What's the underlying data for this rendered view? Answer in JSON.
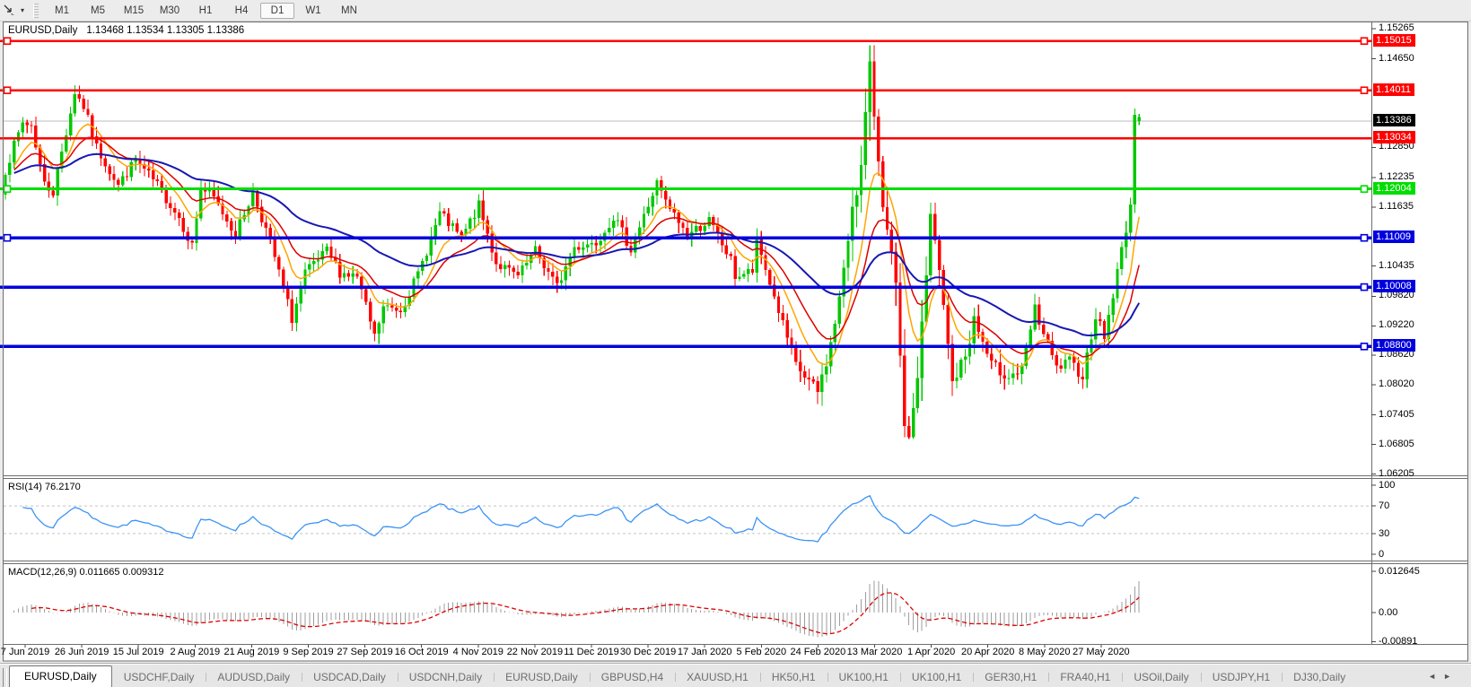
{
  "toolbar": {
    "chart_tool_icon": "diagonal-cursor-icon",
    "dropdown_caret": "▾",
    "timeframes": [
      {
        "label": "M1",
        "active": false
      },
      {
        "label": "M5",
        "active": false
      },
      {
        "label": "M15",
        "active": false
      },
      {
        "label": "M30",
        "active": false
      },
      {
        "label": "H1",
        "active": false
      },
      {
        "label": "H4",
        "active": false
      },
      {
        "label": "D1",
        "active": true
      },
      {
        "label": "W1",
        "active": false
      },
      {
        "label": "MN",
        "active": false
      }
    ]
  },
  "chart_header": {
    "symbol_label": "EURUSD,Daily",
    "quote_line": "1.13468 1.13534 1.13305 1.13386"
  },
  "colors": {
    "bull": "#00C800",
    "bear": "#FF0000",
    "ma_fast": "#FFA500",
    "ma_mid": "#DE0000",
    "ma_slow": "#1717B4",
    "hline_red": "#FF0000",
    "hline_green": "#00DD00",
    "hline_blue": "#0000DE",
    "current_line": "#BEBEBE",
    "current_label_bg": "#000000",
    "rsi_line": "#3B93F5",
    "macd_hist": "#9E9E9E",
    "macd_signal": "#DE0000",
    "panel_border": "#6E6E6E"
  },
  "chart_data": {
    "type": "candlestick",
    "symbol": "EURUSD",
    "timeframe": "Daily",
    "last_quote": {
      "open": "1.13468",
      "high": "1.13534",
      "low": "1.13305",
      "close": "1.13386",
      "bullish_render": true
    },
    "y_axis": {
      "top_price": 1.15265,
      "bottom_price": 1.06205,
      "ticks": [
        "1.15265",
        "1.14650",
        "1.12850",
        "1.12235",
        "1.11635",
        "1.10435",
        "1.09820",
        "1.09220",
        "1.08620",
        "1.08020",
        "1.07405",
        "1.06805",
        "1.06205"
      ]
    },
    "x_labels": [
      "7 Jun 2019",
      "26 Jun 2019",
      "15 Jul 2019",
      "2 Aug 2019",
      "21 Aug 2019",
      "9 Sep 2019",
      "27 Sep 2019",
      "16 Oct 2019",
      "4 Nov 2019",
      "22 Nov 2019",
      "11 Dec 2019",
      "30 Dec 2019",
      "17 Jan 2020",
      "5 Feb 2020",
      "24 Feb 2020",
      "13 Mar 2020",
      "1 Apr 2020",
      "20 Apr 2020",
      "8 May 2020",
      "27 May 2020"
    ],
    "candle_count": 262,
    "close_anchors": [
      [
        0,
        1.124,
        1
      ],
      [
        4,
        1.1335,
        1
      ],
      [
        6,
        1.133,
        1
      ],
      [
        9,
        1.121,
        1
      ],
      [
        11,
        1.1195,
        1
      ],
      [
        16,
        1.1398,
        1.1
      ],
      [
        18,
        1.1368,
        1
      ],
      [
        21,
        1.1285,
        1
      ],
      [
        26,
        1.1208,
        1
      ],
      [
        30,
        1.1259,
        1
      ],
      [
        35,
        1.1207,
        1
      ],
      [
        40,
        1.1143,
        1
      ],
      [
        43,
        1.1085,
        1
      ],
      [
        45,
        1.1203,
        1.2
      ],
      [
        48,
        1.1181,
        1
      ],
      [
        53,
        1.1109,
        1
      ],
      [
        57,
        1.1193,
        1
      ],
      [
        61,
        1.1092,
        1
      ],
      [
        66,
        1.0936,
        1
      ],
      [
        69,
        1.1028,
        1
      ],
      [
        74,
        1.1073,
        1
      ],
      [
        77,
        1.1031,
        1
      ],
      [
        81,
        1.1021,
        1
      ],
      [
        85,
        1.0899,
        1
      ],
      [
        87,
        1.0959,
        1
      ],
      [
        91,
        1.0956,
        1
      ],
      [
        95,
        1.1026,
        1
      ],
      [
        100,
        1.115,
        1
      ],
      [
        105,
        1.11,
        1
      ],
      [
        109,
        1.1166,
        1
      ],
      [
        113,
        1.105,
        1
      ],
      [
        118,
        1.1021,
        1
      ],
      [
        122,
        1.1074,
        1
      ],
      [
        127,
        1.1001,
        1
      ],
      [
        131,
        1.1082,
        1
      ],
      [
        136,
        1.1093,
        1
      ],
      [
        140,
        1.1145,
        1
      ],
      [
        144,
        1.1078,
        1
      ],
      [
        150,
        1.1212,
        1
      ],
      [
        152,
        1.1172,
        1
      ],
      [
        157,
        1.1107,
        1
      ],
      [
        162,
        1.1136,
        1
      ],
      [
        167,
        1.1055,
        1
      ],
      [
        168,
        1.1023,
        1
      ],
      [
        172,
        1.1032,
        1
      ],
      [
        173,
        1.1093,
        1
      ],
      [
        177,
        1.0981,
        1
      ],
      [
        182,
        1.084,
        1.2
      ],
      [
        187,
        1.0786,
        1.3
      ],
      [
        190,
        1.0882,
        1.5
      ],
      [
        193,
        1.1026,
        1.8
      ],
      [
        195,
        1.1173,
        2
      ],
      [
        197,
        1.124,
        2.2
      ],
      [
        199,
        1.1447,
        3
      ],
      [
        201,
        1.1271,
        2.8
      ],
      [
        203,
        1.1106,
        2.4
      ],
      [
        205,
        1.0995,
        2.4
      ],
      [
        207,
        1.0692,
        2.6
      ],
      [
        209,
        1.0727,
        2.6
      ],
      [
        212,
        1.103,
        2.2
      ],
      [
        213,
        1.114,
        2
      ],
      [
        215,
        1.1031,
        1.8
      ],
      [
        218,
        1.0806,
        1.6
      ],
      [
        221,
        1.086,
        1.4
      ],
      [
        223,
        1.0935,
        1.4
      ],
      [
        227,
        1.084,
        1.3
      ],
      [
        231,
        1.0821,
        1.2
      ],
      [
        234,
        1.083,
        1.2
      ],
      [
        237,
        1.0955,
        1.2
      ],
      [
        239,
        1.0905,
        1.1
      ],
      [
        242,
        1.0834,
        1.1
      ],
      [
        245,
        1.0849,
        1
      ],
      [
        248,
        1.082,
        1
      ],
      [
        251,
        1.0945,
        1.1
      ],
      [
        253,
        1.09,
        1
      ],
      [
        255,
        1.0984,
        1.1
      ],
      [
        257,
        1.1076,
        1.2
      ],
      [
        259,
        1.117,
        1.1
      ],
      [
        260,
        1.1338,
        1.3
      ],
      [
        261,
        1.13386,
        1
      ]
    ],
    "overlays": [
      {
        "name": "fast-ma",
        "type": "ema",
        "period": 9,
        "color_key": "ma_fast"
      },
      {
        "name": "mid-ma",
        "type": "ema",
        "period": 18,
        "color_key": "ma_mid"
      },
      {
        "name": "slow-ma",
        "type": "ema",
        "period": 50,
        "color_key": "ma_slow"
      }
    ],
    "hlines": [
      {
        "price": "1.15015",
        "color_key": "hline_red",
        "width": 2.5,
        "handles": [
          "left",
          "right"
        ]
      },
      {
        "price": "1.14011",
        "color_key": "hline_red",
        "width": 2.5,
        "handles": [
          "left",
          "right"
        ]
      },
      {
        "price": "1.13034",
        "color_key": "hline_red",
        "width": 2.5,
        "handles": []
      },
      {
        "price": "1.12004",
        "color_key": "hline_green",
        "width": 3,
        "handles": [
          "left",
          "right"
        ]
      },
      {
        "price": "1.11009",
        "color_key": "hline_blue",
        "width": 3.5,
        "handles": [
          "left",
          "right"
        ]
      },
      {
        "price": "1.10008",
        "color_key": "hline_blue",
        "width": 3.5,
        "handles": [
          "right"
        ]
      },
      {
        "price": "1.08800",
        "color_key": "hline_blue",
        "width": 3.5,
        "handles": [
          "right"
        ]
      }
    ],
    "current_price": "1.13386",
    "indicators": [
      {
        "name": "RSI",
        "label": "RSI(14) 76.2170",
        "period": 14,
        "value": 76.217,
        "range": [
          0,
          100
        ],
        "axis_ticks": [
          "100",
          "70",
          "30",
          "0"
        ],
        "dashed_levels": [
          70,
          30
        ]
      },
      {
        "name": "MACD",
        "label": "MACD(12,26,9) 0.011665 0.009312",
        "params": [
          12,
          26,
          9
        ],
        "macd_value": 0.011665,
        "signal_value": 0.009312,
        "axis_ticks": [
          "0.012645",
          "0.00",
          "-0.00891"
        ]
      }
    ]
  },
  "tabs": {
    "items": [
      {
        "label": "EURUSD,Daily",
        "active": true
      },
      {
        "label": "USDCHF,Daily",
        "active": false
      },
      {
        "label": "AUDUSD,Daily",
        "active": false
      },
      {
        "label": "USDCAD,Daily",
        "active": false
      },
      {
        "label": "USDCNH,Daily",
        "active": false
      },
      {
        "label": "EURUSD,Daily",
        "active": false
      },
      {
        "label": "GBPUSD,H4",
        "active": false
      },
      {
        "label": "XAUUSD,H1",
        "active": false
      },
      {
        "label": "HK50,H1",
        "active": false
      },
      {
        "label": "UK100,H1",
        "active": false
      },
      {
        "label": "UK100,H1",
        "active": false
      },
      {
        "label": "GER30,H1",
        "active": false
      },
      {
        "label": "FRA40,H1",
        "active": false
      },
      {
        "label": "USOil,Daily",
        "active": false
      },
      {
        "label": "USDJPY,H1",
        "active": false
      },
      {
        "label": "DJ30,Daily",
        "active": false
      }
    ],
    "scroll_left": "◄",
    "scroll_right": "►"
  }
}
